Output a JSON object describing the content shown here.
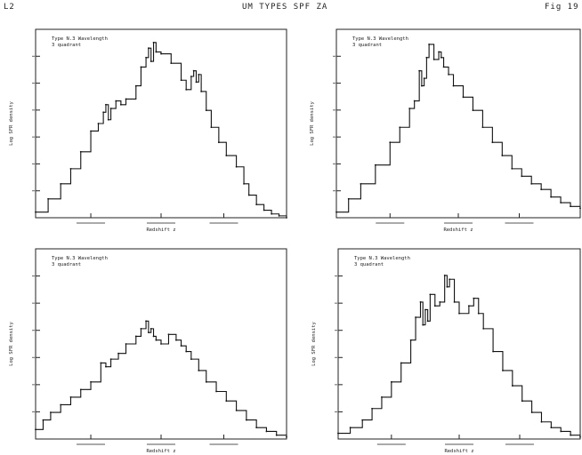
{
  "header": {
    "left": "L2",
    "center": "UM TYPES SPF ZA",
    "right": "Fig 19"
  },
  "chart_data": [
    {
      "type": "line",
      "panel": "top-left",
      "legend": [
        "Type N.3 Wavelength",
        "3 quadrant"
      ],
      "ylabel": "Log SFR density",
      "xlabel": "Redshift z",
      "x": [
        0,
        5,
        10,
        14,
        18,
        22,
        25,
        27,
        28,
        29,
        30,
        32,
        34,
        36,
        40,
        42,
        44,
        45,
        46,
        47,
        48,
        50,
        54,
        58,
        60,
        62,
        63,
        64,
        65,
        66,
        68,
        70,
        73,
        76,
        80,
        83,
        85,
        88,
        91,
        94,
        97,
        100
      ],
      "y": [
        0.03,
        0.1,
        0.18,
        0.26,
        0.35,
        0.46,
        0.5,
        0.56,
        0.6,
        0.52,
        0.58,
        0.62,
        0.6,
        0.63,
        0.7,
        0.8,
        0.85,
        0.9,
        0.83,
        0.93,
        0.88,
        0.87,
        0.82,
        0.73,
        0.68,
        0.75,
        0.78,
        0.72,
        0.76,
        0.67,
        0.57,
        0.48,
        0.4,
        0.33,
        0.27,
        0.18,
        0.12,
        0.07,
        0.04,
        0.02,
        0.01,
        0.0
      ],
      "ylim": [
        0,
        1
      ],
      "xlim": [
        0,
        100
      ]
    },
    {
      "type": "line",
      "panel": "top-right",
      "legend": [
        "Type N.3 Wavelength",
        "3 quadrant"
      ],
      "ylabel": "Log SFR density",
      "xlabel": "Redshift z",
      "x": [
        0,
        5,
        10,
        16,
        22,
        26,
        30,
        32,
        34,
        35,
        36,
        37,
        38,
        40,
        42,
        43,
        44,
        46,
        48,
        52,
        56,
        60,
        64,
        68,
        72,
        76,
        80,
        84,
        88,
        92,
        96,
        100
      ],
      "y": [
        0.03,
        0.1,
        0.18,
        0.28,
        0.4,
        0.48,
        0.58,
        0.62,
        0.78,
        0.7,
        0.74,
        0.85,
        0.92,
        0.84,
        0.88,
        0.85,
        0.8,
        0.76,
        0.7,
        0.64,
        0.57,
        0.48,
        0.4,
        0.33,
        0.26,
        0.22,
        0.18,
        0.15,
        0.11,
        0.08,
        0.06,
        0.05
      ],
      "ylim": [
        0,
        1
      ],
      "xlim": [
        0,
        100
      ]
    },
    {
      "type": "line",
      "panel": "bottom-left",
      "legend": [
        "Type N.3 Wavelength",
        "3 quadrant"
      ],
      "ylabel": "Log SFR density",
      "xlabel": "Redshift z",
      "x": [
        0,
        3,
        6,
        10,
        14,
        18,
        22,
        26,
        28,
        30,
        33,
        36,
        40,
        42,
        44,
        45,
        46,
        47,
        48,
        50,
        53,
        56,
        58,
        60,
        62,
        65,
        68,
        72,
        76,
        80,
        84,
        88,
        92,
        96,
        100
      ],
      "y": [
        0.05,
        0.1,
        0.14,
        0.18,
        0.22,
        0.26,
        0.3,
        0.4,
        0.38,
        0.42,
        0.45,
        0.5,
        0.54,
        0.58,
        0.62,
        0.56,
        0.58,
        0.54,
        0.52,
        0.5,
        0.55,
        0.52,
        0.49,
        0.46,
        0.42,
        0.36,
        0.3,
        0.25,
        0.2,
        0.15,
        0.1,
        0.06,
        0.04,
        0.02,
        0.01
      ],
      "ylim": [
        0,
        1
      ],
      "xlim": [
        0,
        100
      ]
    },
    {
      "type": "line",
      "panel": "bottom-right",
      "legend": [
        "Type N.3 Wavelength",
        "3 quadrant"
      ],
      "ylabel": "Log SFR density",
      "xlabel": "Redshift z",
      "x": [
        0,
        5,
        10,
        14,
        18,
        22,
        26,
        30,
        32,
        34,
        35,
        36,
        37,
        38,
        40,
        42,
        44,
        45,
        46,
        48,
        50,
        54,
        56,
        58,
        60,
        64,
        68,
        72,
        76,
        80,
        84,
        88,
        92,
        96,
        100
      ],
      "y": [
        0.03,
        0.06,
        0.1,
        0.16,
        0.22,
        0.3,
        0.4,
        0.52,
        0.64,
        0.72,
        0.6,
        0.68,
        0.62,
        0.76,
        0.7,
        0.72,
        0.86,
        0.8,
        0.84,
        0.72,
        0.66,
        0.7,
        0.74,
        0.66,
        0.58,
        0.46,
        0.36,
        0.28,
        0.2,
        0.14,
        0.09,
        0.06,
        0.04,
        0.02,
        0.01
      ],
      "ylim": [
        0,
        1
      ],
      "xlim": [
        0,
        100
      ]
    }
  ]
}
